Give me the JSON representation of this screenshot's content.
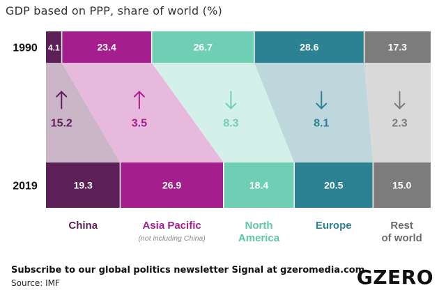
{
  "title": "GDP based on PPP, share of world (%)",
  "chart_data": {
    "type": "bar",
    "title": "GDP based on PPP, share of world (%)",
    "years": [
      "1990",
      "2019"
    ],
    "regions": [
      {
        "name": "China",
        "sublabel": "",
        "color": "#5c1f57",
        "band_color": "#cbb6c8",
        "values": [
          4.1,
          19.3
        ],
        "change": "15.2",
        "direction": "up",
        "label_color": "#5c1f57"
      },
      {
        "name": "Asia Pacific",
        "sublabel": "(not including China)",
        "color": "#a51e8e",
        "band_color": "#e6b9dd",
        "values": [
          23.4,
          26.9
        ],
        "change": "3.5",
        "direction": "up",
        "label_color": "#a51e8e"
      },
      {
        "name": "North America",
        "sublabel": "",
        "color": "#6fcfb5",
        "band_color": "#d3f1e8",
        "values": [
          26.7,
          18.4
        ],
        "change": "8.3",
        "direction": "down",
        "label_color": "#5dc7a9"
      },
      {
        "name": "Europe",
        "sublabel": "",
        "color": "#2c8293",
        "band_color": "#bdd7dd",
        "values": [
          28.6,
          20.5
        ],
        "change": "8.1",
        "direction": "down",
        "label_color": "#2c8293"
      },
      {
        "name": "Rest of world",
        "sublabel": "",
        "color": "#7c7c7c",
        "band_color": "#d9d9d9",
        "values": [
          17.3,
          15.0
        ],
        "change": "2.3",
        "direction": "down",
        "label_color": "#6b6b6b"
      }
    ],
    "xlabel": "",
    "ylabel": ""
  },
  "footer": {
    "subscribe": "Subscribe to our global politics newsletter Signal at gzeromedia.com",
    "source": "Source: IMF"
  },
  "logo": "GZERO"
}
